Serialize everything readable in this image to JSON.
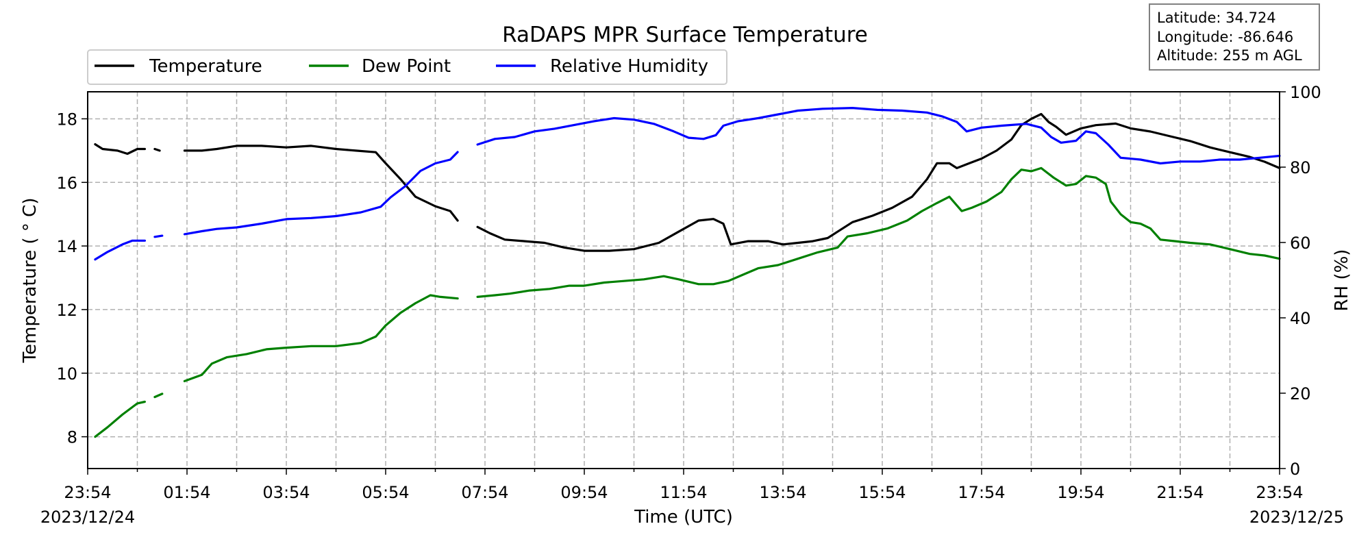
{
  "chart_data": {
    "type": "line",
    "title": "RaDAPS MPR Surface Temperature",
    "xlabel": "Time (UTC)",
    "ylabel": "Temperature ($^\\circ$C)",
    "ylabel_display": "Temperature ( ° C)",
    "y2label": "RH (%)",
    "ylim": [
      7,
      18.85
    ],
    "y2lim": [
      0,
      100
    ],
    "x_hours_range": [
      0,
      24
    ],
    "x_ticks": [
      "23:54",
      "01:54",
      "03:54",
      "05:54",
      "07:54",
      "09:54",
      "11:54",
      "13:54",
      "15:54",
      "17:54",
      "19:54",
      "21:54",
      "23:54"
    ],
    "date_start": "2023/12/24",
    "date_end": "2023/12/25",
    "y_ticks": [
      "8",
      "10",
      "12",
      "14",
      "16",
      "18"
    ],
    "y2_ticks": [
      "0",
      "20",
      "40",
      "60",
      "80",
      "100"
    ],
    "grid": true,
    "legend_position": "top-left",
    "info_box": [
      "Latitude: 34.724",
      "Longitude: -86.646",
      "Altitude: 255 m AGL"
    ],
    "series": [
      {
        "name": "Temperature",
        "axis": "left",
        "color": "#000000",
        "segments": [
          [
            [
              0.15,
              17.2
            ],
            [
              0.3,
              17.05
            ],
            [
              0.6,
              17.0
            ],
            [
              0.8,
              16.9
            ],
            [
              1.0,
              17.05
            ],
            [
              1.15,
              17.05
            ]
          ],
          [
            [
              1.35,
              17.05
            ],
            [
              1.45,
              17.0
            ]
          ],
          [
            [
              1.95,
              17.0
            ],
            [
              2.3,
              17.0
            ],
            [
              2.6,
              17.05
            ],
            [
              3.0,
              17.15
            ],
            [
              3.5,
              17.15
            ],
            [
              4.0,
              17.1
            ],
            [
              4.5,
              17.15
            ],
            [
              5.0,
              17.05
            ],
            [
              5.4,
              17.0
            ],
            [
              5.8,
              16.95
            ],
            [
              6.0,
              16.6
            ],
            [
              6.3,
              16.1
            ],
            [
              6.6,
              15.55
            ],
            [
              7.0,
              15.25
            ],
            [
              7.3,
              15.1
            ],
            [
              7.45,
              14.8
            ]
          ],
          [
            [
              7.85,
              14.6
            ],
            [
              8.1,
              14.4
            ],
            [
              8.4,
              14.2
            ],
            [
              8.8,
              14.15
            ],
            [
              9.2,
              14.1
            ],
            [
              9.6,
              13.95
            ],
            [
              10.0,
              13.85
            ],
            [
              10.5,
              13.85
            ],
            [
              11.0,
              13.9
            ],
            [
              11.5,
              14.1
            ],
            [
              11.9,
              14.45
            ],
            [
              12.3,
              14.8
            ],
            [
              12.6,
              14.85
            ],
            [
              12.8,
              14.7
            ],
            [
              12.95,
              14.05
            ],
            [
              13.3,
              14.15
            ],
            [
              13.7,
              14.15
            ],
            [
              14.0,
              14.05
            ],
            [
              14.3,
              14.1
            ],
            [
              14.6,
              14.15
            ],
            [
              14.9,
              14.25
            ],
            [
              15.1,
              14.45
            ],
            [
              15.4,
              14.75
            ],
            [
              15.8,
              14.95
            ],
            [
              16.2,
              15.2
            ],
            [
              16.6,
              15.55
            ],
            [
              16.9,
              16.1
            ],
            [
              17.1,
              16.6
            ],
            [
              17.35,
              16.6
            ],
            [
              17.5,
              16.45
            ],
            [
              17.75,
              16.6
            ],
            [
              18.0,
              16.75
            ],
            [
              18.3,
              17.0
            ],
            [
              18.6,
              17.35
            ],
            [
              18.8,
              17.8
            ],
            [
              19.0,
              18.0
            ],
            [
              19.2,
              18.15
            ],
            [
              19.35,
              17.9
            ],
            [
              19.5,
              17.75
            ],
            [
              19.7,
              17.5
            ],
            [
              20.0,
              17.7
            ],
            [
              20.3,
              17.8
            ],
            [
              20.7,
              17.85
            ],
            [
              21.0,
              17.7
            ],
            [
              21.4,
              17.6
            ],
            [
              21.8,
              17.45
            ],
            [
              22.2,
              17.3
            ],
            [
              22.6,
              17.1
            ],
            [
              23.0,
              16.95
            ],
            [
              23.4,
              16.8
            ],
            [
              23.7,
              16.65
            ],
            [
              24.0,
              16.45
            ]
          ]
        ]
      },
      {
        "name": "Dew Point",
        "axis": "left",
        "color": "#008000",
        "segments": [
          [
            [
              0.15,
              8.0
            ],
            [
              0.4,
              8.3
            ],
            [
              0.7,
              8.7
            ],
            [
              1.0,
              9.05
            ],
            [
              1.15,
              9.1
            ]
          ],
          [
            [
              1.35,
              9.25
            ],
            [
              1.5,
              9.35
            ]
          ],
          [
            [
              1.95,
              9.75
            ],
            [
              2.3,
              9.95
            ],
            [
              2.5,
              10.3
            ],
            [
              2.8,
              10.5
            ],
            [
              3.2,
              10.6
            ],
            [
              3.6,
              10.75
            ],
            [
              4.0,
              10.8
            ],
            [
              4.5,
              10.85
            ],
            [
              5.0,
              10.85
            ],
            [
              5.5,
              10.95
            ],
            [
              5.8,
              11.15
            ],
            [
              6.0,
              11.5
            ],
            [
              6.3,
              11.9
            ],
            [
              6.6,
              12.2
            ],
            [
              6.9,
              12.45
            ],
            [
              7.1,
              12.4
            ],
            [
              7.45,
              12.35
            ]
          ],
          [
            [
              7.85,
              12.4
            ],
            [
              8.2,
              12.45
            ],
            [
              8.5,
              12.5
            ],
            [
              8.9,
              12.6
            ],
            [
              9.3,
              12.65
            ],
            [
              9.7,
              12.75
            ],
            [
              10.0,
              12.75
            ],
            [
              10.4,
              12.85
            ],
            [
              10.8,
              12.9
            ],
            [
              11.2,
              12.95
            ],
            [
              11.6,
              13.05
            ],
            [
              11.9,
              12.95
            ],
            [
              12.3,
              12.8
            ],
            [
              12.6,
              12.8
            ],
            [
              12.9,
              12.9
            ],
            [
              13.2,
              13.1
            ],
            [
              13.5,
              13.3
            ],
            [
              13.9,
              13.4
            ],
            [
              14.3,
              13.6
            ],
            [
              14.7,
              13.8
            ],
            [
              15.1,
              13.95
            ],
            [
              15.3,
              14.3
            ],
            [
              15.7,
              14.4
            ],
            [
              16.1,
              14.55
            ],
            [
              16.5,
              14.8
            ],
            [
              16.8,
              15.1
            ],
            [
              17.1,
              15.35
            ],
            [
              17.35,
              15.55
            ],
            [
              17.6,
              15.1
            ],
            [
              17.8,
              15.2
            ],
            [
              18.1,
              15.4
            ],
            [
              18.4,
              15.7
            ],
            [
              18.6,
              16.1
            ],
            [
              18.8,
              16.4
            ],
            [
              19.0,
              16.35
            ],
            [
              19.2,
              16.45
            ],
            [
              19.45,
              16.15
            ],
            [
              19.7,
              15.9
            ],
            [
              19.9,
              15.95
            ],
            [
              20.1,
              16.2
            ],
            [
              20.3,
              16.15
            ],
            [
              20.5,
              15.95
            ],
            [
              20.6,
              15.4
            ],
            [
              20.8,
              15.0
            ],
            [
              21.0,
              14.75
            ],
            [
              21.2,
              14.7
            ],
            [
              21.4,
              14.55
            ],
            [
              21.6,
              14.2
            ],
            [
              21.9,
              14.15
            ],
            [
              22.2,
              14.1
            ],
            [
              22.6,
              14.05
            ],
            [
              23.0,
              13.9
            ],
            [
              23.4,
              13.75
            ],
            [
              23.7,
              13.7
            ],
            [
              24.0,
              13.6
            ]
          ]
        ]
      },
      {
        "name": "Relative Humidity",
        "axis": "right",
        "color": "#0000ff",
        "segments": [
          [
            [
              0.15,
              55.5
            ],
            [
              0.4,
              57.5
            ],
            [
              0.7,
              59.5
            ],
            [
              0.9,
              60.5
            ],
            [
              1.15,
              60.5
            ]
          ],
          [
            [
              1.35,
              61.5
            ],
            [
              1.5,
              61.8
            ]
          ],
          [
            [
              1.95,
              62.2
            ],
            [
              2.3,
              63.0
            ],
            [
              2.6,
              63.6
            ],
            [
              3.0,
              64.0
            ],
            [
              3.5,
              65.0
            ],
            [
              4.0,
              66.2
            ],
            [
              4.5,
              66.5
            ],
            [
              5.0,
              67.0
            ],
            [
              5.5,
              68.0
            ],
            [
              5.9,
              69.5
            ],
            [
              6.1,
              72.0
            ],
            [
              6.4,
              75.0
            ],
            [
              6.7,
              79.0
            ],
            [
              7.0,
              81.0
            ],
            [
              7.3,
              82.0
            ],
            [
              7.45,
              84.0
            ]
          ],
          [
            [
              7.85,
              86.0
            ],
            [
              8.2,
              87.5
            ],
            [
              8.6,
              88.0
            ],
            [
              9.0,
              89.5
            ],
            [
              9.4,
              90.2
            ],
            [
              9.8,
              91.2
            ],
            [
              10.2,
              92.2
            ],
            [
              10.6,
              93.0
            ],
            [
              11.0,
              92.6
            ],
            [
              11.4,
              91.5
            ],
            [
              11.8,
              89.5
            ],
            [
              12.1,
              87.8
            ],
            [
              12.4,
              87.5
            ],
            [
              12.65,
              88.5
            ],
            [
              12.8,
              91.0
            ],
            [
              13.1,
              92.2
            ],
            [
              13.5,
              93.0
            ],
            [
              13.9,
              94.0
            ],
            [
              14.3,
              95.0
            ],
            [
              14.8,
              95.5
            ],
            [
              15.4,
              95.7
            ],
            [
              15.9,
              95.2
            ],
            [
              16.4,
              95.0
            ],
            [
              16.9,
              94.5
            ],
            [
              17.2,
              93.5
            ],
            [
              17.5,
              92.0
            ],
            [
              17.7,
              89.5
            ],
            [
              18.0,
              90.5
            ],
            [
              18.4,
              91.0
            ],
            [
              18.9,
              91.5
            ],
            [
              19.2,
              90.5
            ],
            [
              19.4,
              88.0
            ],
            [
              19.6,
              86.5
            ],
            [
              19.9,
              87.0
            ],
            [
              20.1,
              89.5
            ],
            [
              20.3,
              89.0
            ],
            [
              20.55,
              86.0
            ],
            [
              20.8,
              82.5
            ],
            [
              21.2,
              82.0
            ],
            [
              21.6,
              81.0
            ],
            [
              22.0,
              81.5
            ],
            [
              22.4,
              81.5
            ],
            [
              22.8,
              82.0
            ],
            [
              23.2,
              82.0
            ],
            [
              23.6,
              82.5
            ],
            [
              24.0,
              83.0
            ]
          ]
        ]
      }
    ]
  }
}
